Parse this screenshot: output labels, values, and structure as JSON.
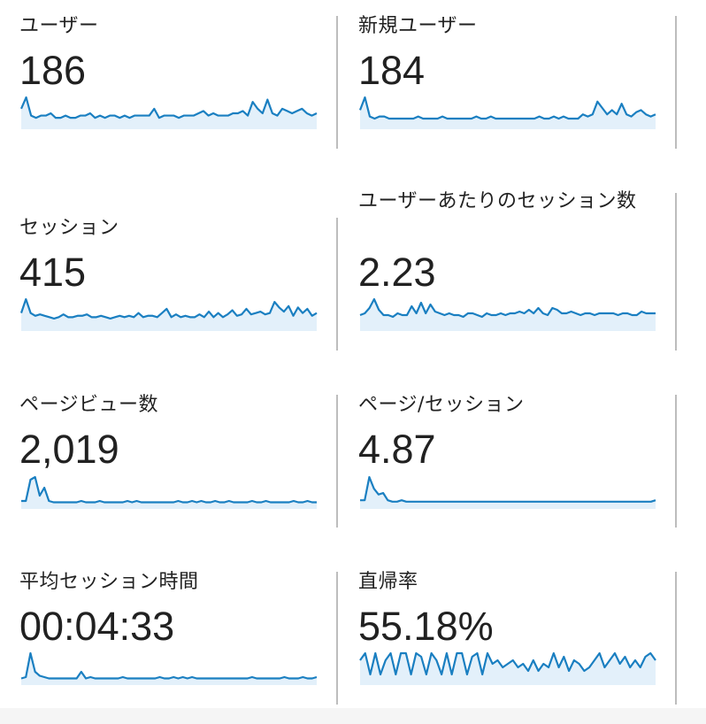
{
  "colors": {
    "line": "#1a7fc1",
    "fill": "#e3f0fa",
    "divider": "#bdbdbd"
  },
  "metrics": [
    {
      "label": "ユーザー",
      "value": "186",
      "chart_data": {
        "type": "area",
        "values": [
          9,
          14,
          6,
          5,
          6,
          6,
          7,
          5,
          5,
          6,
          5,
          5,
          6,
          6,
          7,
          5,
          6,
          5,
          6,
          6,
          5,
          6,
          5,
          6,
          6,
          6,
          6,
          9,
          5,
          6,
          6,
          6,
          5,
          6,
          6,
          6,
          7,
          8,
          6,
          7,
          6,
          6,
          6,
          7,
          7,
          8,
          6,
          12,
          9,
          7,
          13,
          7,
          6,
          9,
          8,
          7,
          8,
          9,
          7,
          6,
          7
        ]
      }
    },
    {
      "label": "新規ユーザー",
      "value": "184",
      "chart_data": {
        "type": "area",
        "values": [
          9,
          15,
          6,
          5,
          6,
          6,
          5,
          5,
          5,
          5,
          5,
          5,
          6,
          5,
          5,
          5,
          5,
          6,
          5,
          5,
          5,
          5,
          5,
          5,
          6,
          5,
          5,
          6,
          5,
          5,
          5,
          5,
          5,
          5,
          5,
          5,
          5,
          6,
          5,
          5,
          6,
          5,
          6,
          5,
          5,
          5,
          7,
          6,
          7,
          13,
          10,
          7,
          9,
          7,
          12,
          7,
          6,
          8,
          9,
          7,
          6,
          7
        ]
      }
    },
    {
      "label": "セッション",
      "value": "415",
      "chart_data": {
        "type": "area",
        "values": [
          13,
          23,
          13,
          11,
          12,
          11,
          10,
          9,
          10,
          12,
          10,
          10,
          11,
          11,
          12,
          10,
          10,
          11,
          10,
          9,
          10,
          11,
          10,
          11,
          10,
          13,
          10,
          11,
          11,
          10,
          13,
          16,
          10,
          12,
          10,
          11,
          10,
          10,
          12,
          10,
          14,
          10,
          13,
          10,
          12,
          15,
          11,
          12,
          16,
          12,
          13,
          14,
          12,
          13,
          21,
          17,
          14,
          18,
          11,
          17,
          13,
          16,
          11,
          13
        ]
      }
    },
    {
      "label": "ユーザーあたりのセッション数",
      "value": "2.23",
      "chart_data": {
        "type": "area",
        "values": [
          9,
          10,
          13,
          18,
          12,
          9,
          9,
          8,
          10,
          9,
          9,
          14,
          10,
          16,
          10,
          15,
          11,
          10,
          9,
          10,
          9,
          9,
          8,
          10,
          10,
          9,
          8,
          10,
          9,
          9,
          10,
          9,
          10,
          10,
          11,
          10,
          12,
          10,
          13,
          10,
          9,
          13,
          12,
          10,
          10,
          11,
          10,
          9,
          10,
          10,
          9,
          10,
          10,
          10,
          10,
          9,
          10,
          10,
          9,
          9,
          11,
          10,
          10,
          10
        ]
      }
    },
    {
      "label": "ページビュー数",
      "value": "2,019",
      "chart_data": {
        "type": "area",
        "values": [
          6,
          6,
          22,
          24,
          10,
          16,
          6,
          5,
          5,
          5,
          5,
          5,
          5,
          6,
          5,
          5,
          5,
          6,
          5,
          5,
          5,
          5,
          5,
          6,
          5,
          6,
          5,
          5,
          5,
          5,
          5,
          5,
          5,
          5,
          6,
          5,
          5,
          6,
          5,
          6,
          5,
          5,
          6,
          5,
          5,
          6,
          5,
          5,
          5,
          5,
          6,
          5,
          5,
          6,
          5,
          5,
          5,
          5,
          5,
          6,
          5,
          5,
          6,
          5,
          5
        ]
      }
    },
    {
      "label": "ページ/セッション",
      "value": "4.87",
      "chart_data": {
        "type": "area",
        "values": [
          6,
          6,
          22,
          14,
          10,
          11,
          6,
          5,
          5,
          6,
          5,
          5,
          5,
          5,
          5,
          5,
          5,
          5,
          5,
          5,
          5,
          5,
          5,
          5,
          5,
          5,
          5,
          5,
          5,
          5,
          5,
          5,
          5,
          5,
          5,
          5,
          5,
          5,
          5,
          5,
          5,
          5,
          5,
          5,
          5,
          5,
          5,
          5,
          5,
          5,
          5,
          5,
          5,
          5,
          5,
          5,
          5,
          5,
          5,
          5,
          5,
          5,
          5,
          5,
          6
        ]
      }
    },
    {
      "label": "平均セッション時間",
      "value": "00:04:33",
      "chart_data": {
        "type": "area",
        "values": [
          5,
          6,
          24,
          10,
          7,
          6,
          5,
          5,
          5,
          5,
          5,
          5,
          5,
          10,
          5,
          6,
          5,
          5,
          5,
          5,
          5,
          5,
          6,
          5,
          5,
          5,
          5,
          5,
          5,
          5,
          6,
          5,
          5,
          6,
          5,
          6,
          5,
          6,
          5,
          5,
          5,
          5,
          5,
          5,
          5,
          5,
          5,
          5,
          5,
          5,
          6,
          5,
          5,
          5,
          5,
          5,
          5,
          6,
          5,
          5,
          5,
          6,
          5,
          5,
          6
        ]
      }
    },
    {
      "label": "直帰率",
      "value": "55.18%",
      "chart_data": {
        "type": "area",
        "values": [
          14,
          18,
          6,
          18,
          6,
          14,
          18,
          6,
          18,
          18,
          6,
          18,
          16,
          6,
          18,
          14,
          6,
          18,
          6,
          18,
          18,
          6,
          16,
          18,
          6,
          18,
          12,
          14,
          10,
          12,
          14,
          10,
          12,
          8,
          14,
          8,
          12,
          10,
          18,
          10,
          16,
          8,
          14,
          12,
          8,
          10,
          14,
          18,
          10,
          14,
          18,
          12,
          16,
          10,
          14,
          10,
          16,
          18,
          14
        ]
      }
    }
  ]
}
